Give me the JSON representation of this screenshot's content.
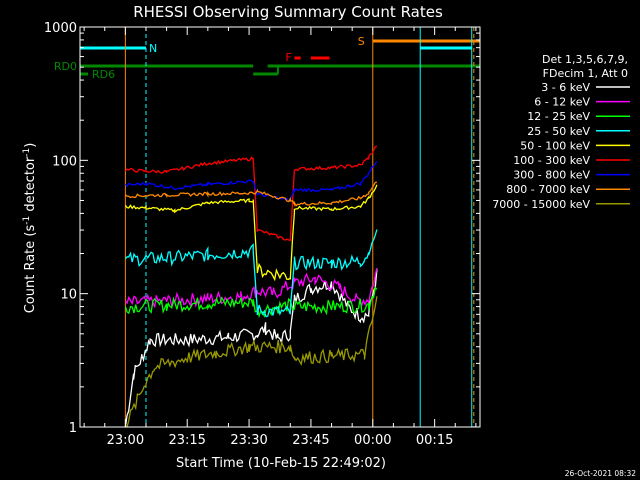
{
  "chart_data": {
    "type": "line",
    "title": "RHESSI Observing Summary Count Rates",
    "xlabel": "Start Time (10-Feb-15 22:49:02)",
    "ylabel_main": "Count Rate (s",
    "ylabel_sup1": "-1",
    "ylabel_mid": " detector",
    "ylabel_sup2": "-1",
    "ylabel_end": ")",
    "y_log": true,
    "ylim": [
      1,
      1000
    ],
    "xlim_minutes": [
      -11,
      86
    ],
    "x_ticks": [
      {
        "m": 0,
        "label": "23:00"
      },
      {
        "m": 15,
        "label": "23:15"
      },
      {
        "m": 30,
        "label": "23:30"
      },
      {
        "m": 45,
        "label": "23:45"
      },
      {
        "m": 60,
        "label": "00:00"
      },
      {
        "m": 75,
        "label": "00:15"
      }
    ],
    "y_ticks": [
      {
        "v": 1,
        "label": "1"
      },
      {
        "v": 10,
        "label": "10"
      },
      {
        "v": 100,
        "label": "100"
      },
      {
        "v": 1000,
        "label": "1000"
      }
    ],
    "legend_header": [
      "Det 1,3,5,6,7,9,",
      "FDecim 1, Att 0"
    ],
    "series": [
      {
        "name": "3 - 6 keV",
        "color": "#ffffff",
        "segments": [
          [
            [
              0,
              1
            ],
            [
              2,
              2.5
            ],
            [
              4,
              3.3
            ],
            [
              6,
              4.5
            ],
            [
              15,
              4.5
            ],
            [
              25,
              4.7
            ],
            [
              32,
              5
            ],
            [
              34,
              5.5
            ],
            [
              37,
              4.6
            ],
            [
              40,
              5
            ],
            [
              41,
              9
            ],
            [
              45,
              11
            ],
            [
              50,
              12
            ],
            [
              54,
              8
            ],
            [
              57,
              6.8
            ],
            [
              59,
              7
            ],
            [
              61,
              14
            ]
          ]
        ]
      },
      {
        "name": "6 - 12 keV",
        "color": "#ff00ff",
        "segments": [
          [
            [
              0,
              8.5
            ],
            [
              10,
              8.8
            ],
            [
              20,
              9.2
            ],
            [
              28,
              9.5
            ],
            [
              32,
              10.5
            ],
            [
              36,
              10
            ],
            [
              41,
              12
            ],
            [
              46,
              13
            ],
            [
              52,
              11
            ],
            [
              56,
              9
            ],
            [
              59,
              9
            ],
            [
              61,
              15
            ]
          ]
        ]
      },
      {
        "name": "12 - 25 keV",
        "color": "#00ff00",
        "segments": [
          [
            [
              0,
              8
            ],
            [
              10,
              8.2
            ],
            [
              20,
              8.5
            ],
            [
              31,
              8.6
            ],
            [
              32,
              7.5
            ],
            [
              40,
              8.2
            ],
            [
              41,
              8
            ],
            [
              50,
              8
            ],
            [
              59,
              8.2
            ],
            [
              61,
              12
            ]
          ]
        ]
      },
      {
        "name": "25 - 50 keV",
        "color": "#00ffff",
        "segments": [
          [
            [
              0,
              18
            ],
            [
              10,
              18.5
            ],
            [
              20,
              19.5
            ],
            [
              31,
              21
            ],
            [
              32,
              7.5
            ],
            [
              40,
              7.2
            ],
            [
              41,
              17
            ],
            [
              50,
              17
            ],
            [
              57,
              17.5
            ],
            [
              59,
              20
            ],
            [
              61,
              30
            ]
          ]
        ]
      },
      {
        "name": "50 - 100 keV",
        "color": "#ffff00",
        "segments": [
          [
            [
              0,
              45
            ],
            [
              5,
              44
            ],
            [
              12,
              42
            ],
            [
              20,
              48
            ],
            [
              30,
              50
            ],
            [
              31,
              50
            ],
            [
              32,
              15
            ],
            [
              40,
              13.5
            ],
            [
              41,
              44
            ],
            [
              50,
              43
            ],
            [
              57,
              45
            ],
            [
              59,
              52
            ],
            [
              61,
              65
            ]
          ]
        ]
      },
      {
        "name": "100 - 300 keV",
        "color": "#ff0000",
        "segments": [
          [
            [
              0,
              85
            ],
            [
              5,
              83
            ],
            [
              10,
              82
            ],
            [
              20,
              95
            ],
            [
              31,
              103
            ],
            [
              32,
              30
            ],
            [
              40,
              25
            ],
            [
              41,
              86
            ],
            [
              50,
              88
            ],
            [
              57,
              92
            ],
            [
              59,
              105
            ],
            [
              61,
              130
            ]
          ]
        ]
      },
      {
        "name": "300 - 800 keV",
        "color": "#0000ff",
        "segments": [
          [
            [
              0,
              65
            ],
            [
              5,
              67
            ],
            [
              12,
              62
            ],
            [
              20,
              66
            ],
            [
              31,
              70
            ],
            [
              32,
              56
            ],
            [
              40,
              50
            ],
            [
              41,
              60
            ],
            [
              50,
              60
            ],
            [
              57,
              67
            ],
            [
              59,
              80
            ],
            [
              61,
              100
            ]
          ]
        ]
      },
      {
        "name": "800 - 7000 keV",
        "color": "#ff8800",
        "segments": [
          [
            [
              0,
              54
            ],
            [
              10,
              55
            ],
            [
              20,
              56
            ],
            [
              31,
              57
            ],
            [
              32,
              58
            ],
            [
              40,
              50
            ],
            [
              41,
              47
            ],
            [
              50,
              48
            ],
            [
              57,
              52
            ],
            [
              59,
              57
            ],
            [
              61,
              70
            ]
          ]
        ]
      },
      {
        "name": "7000 - 15000 keV",
        "color": "#999900",
        "segments": [
          [
            [
              0,
              1
            ],
            [
              5,
              2.2
            ],
            [
              7,
              2.8
            ],
            [
              15,
              3.3
            ],
            [
              22,
              3.6
            ],
            [
              30,
              4
            ],
            [
              32,
              4
            ],
            [
              40,
              4
            ],
            [
              41,
              3.3
            ],
            [
              50,
              3.4
            ],
            [
              58,
              3.5
            ],
            [
              61,
              9
            ]
          ]
        ]
      }
    ],
    "flags": {
      "N_label": "N",
      "F_label": "F",
      "S_label": "S",
      "RD0_label": "RD0",
      "RD6_label": "RD6"
    },
    "vlines": [
      {
        "m": 0,
        "color": "#ff8800"
      },
      {
        "m": 60,
        "color": "#ff8800"
      },
      {
        "m": 84.5,
        "color": "#ff8800"
      },
      {
        "m": 71.5,
        "color": "#00ffff"
      },
      {
        "m": 84,
        "color": "#00ffff"
      }
    ],
    "footer_timestamp": "26-Oct-2021 08:32"
  }
}
